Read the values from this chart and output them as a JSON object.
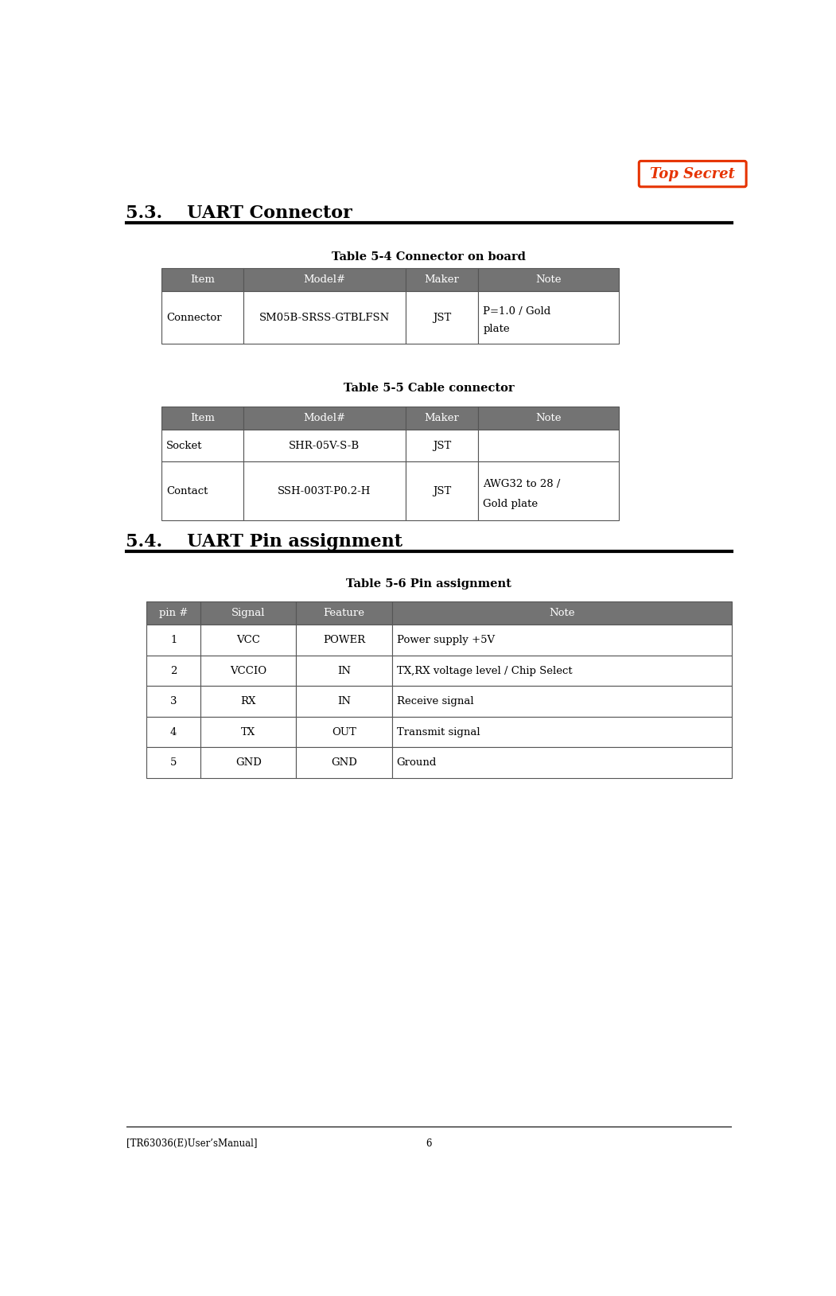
{
  "page_bg": "#ffffff",
  "top_secret_text": "Top Secret",
  "top_secret_color": "#e63300",
  "top_secret_border": "#e63300",
  "section_53_title": "5.3.    UART Connector",
  "section_54_title": "5.4.    UART Pin assignment",
  "table1_title": "Table 5-4 Connector on board",
  "table2_title": "Table 5-5 Cable connector",
  "table3_title": "Table 5-6 Pin assignment",
  "table1_headers": [
    "Item",
    "Model#",
    "Maker",
    "Note"
  ],
  "table1_rows": [
    [
      "Connector",
      "SM05B-SRSS-GTBLFSN",
      "JST",
      "P=1.0 / Gold\nplate"
    ]
  ],
  "table2_headers": [
    "Item",
    "Model#",
    "Maker",
    "Note"
  ],
  "table2_rows": [
    [
      "Socket",
      "SHR-05V-S-B",
      "JST",
      ""
    ],
    [
      "Contact",
      "SSH-003T-P0.2-H",
      "JST",
      "AWG32 to 28 /\nGold plate"
    ]
  ],
  "table3_headers": [
    "pin #",
    "Signal",
    "Feature",
    "Note"
  ],
  "table3_rows": [
    [
      "1",
      "VCC",
      "POWER",
      "Power supply +5V"
    ],
    [
      "2",
      "VCCIO",
      "IN",
      "TX,RX voltage level / Chip Select"
    ],
    [
      "3",
      "RX",
      "IN",
      "Receive signal"
    ],
    [
      "4",
      "TX",
      "OUT",
      "Transmit signal"
    ],
    [
      "5",
      "GND",
      "GND",
      "Ground"
    ]
  ],
  "header_bg": "#737373",
  "header_text_color": "#ffffff",
  "row_bg": "#ffffff",
  "row_text_color": "#000000",
  "footer_text": "[TR63036(E)User’sManual]",
  "footer_page": "6",
  "body_font_size": 9.5,
  "section_font_size": 16,
  "table_title_font_size": 10.5
}
